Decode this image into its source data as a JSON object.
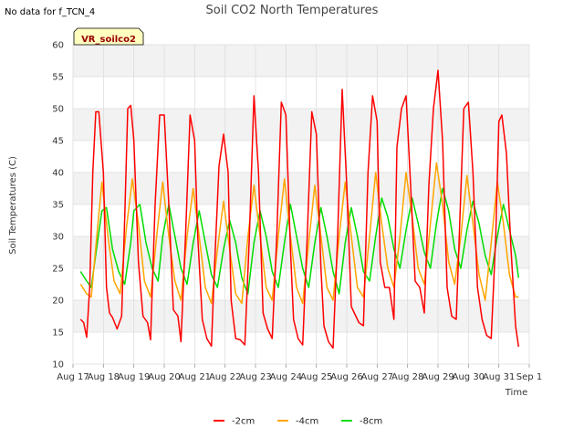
{
  "page": {
    "nodata_text": "No data for f_TCN_4"
  },
  "chart_data": {
    "type": "line",
    "title": "Soil CO2 North Temperatures",
    "xlabel": "Time",
    "ylabel": "Soil Temperatures (C)",
    "ylim": [
      10,
      60
    ],
    "yticks": [
      10,
      15,
      20,
      25,
      30,
      35,
      40,
      45,
      50,
      55,
      60
    ],
    "xlim": [
      17.0,
      32.0
    ],
    "xticks": [
      {
        "value": 17,
        "label": "Aug 17"
      },
      {
        "value": 18,
        "label": "Aug 18"
      },
      {
        "value": 19,
        "label": "Aug 19"
      },
      {
        "value": 20,
        "label": "Aug 20"
      },
      {
        "value": 21,
        "label": "Aug 21"
      },
      {
        "value": 22,
        "label": "Aug 22"
      },
      {
        "value": 23,
        "label": "Aug 23"
      },
      {
        "value": 24,
        "label": "Aug 24"
      },
      {
        "value": 25,
        "label": "Aug 25"
      },
      {
        "value": 26,
        "label": "Aug 26"
      },
      {
        "value": 27,
        "label": "Aug 27"
      },
      {
        "value": 28,
        "label": "Aug 28"
      },
      {
        "value": 29,
        "label": "Aug 29"
      },
      {
        "value": 30,
        "label": "Aug 30"
      },
      {
        "value": 31,
        "label": "Aug 31"
      },
      {
        "value": 32,
        "label": "Sep 1"
      }
    ],
    "grid": true,
    "background_bands": true,
    "badge": "VR_soilco2",
    "legend_position": "bottom-center",
    "series": [
      {
        "name": "-2cm",
        "color": "#ff0000",
        "x": [
          17.25,
          17.35,
          17.45,
          17.55,
          17.65,
          17.75,
          17.85,
          18.0,
          18.1,
          18.2,
          18.3,
          18.45,
          18.6,
          18.7,
          18.8,
          18.9,
          19.0,
          19.15,
          19.3,
          19.45,
          19.55,
          19.7,
          19.85,
          20.0,
          20.15,
          20.3,
          20.45,
          20.55,
          20.7,
          20.85,
          21.0,
          21.1,
          21.25,
          21.4,
          21.55,
          21.65,
          21.8,
          21.95,
          22.1,
          22.2,
          22.35,
          22.5,
          22.65,
          22.8,
          22.95,
          23.1,
          23.25,
          23.4,
          23.55,
          23.7,
          23.85,
          24.0,
          24.15,
          24.25,
          24.4,
          24.55,
          24.7,
          24.85,
          25.0,
          25.15,
          25.25,
          25.4,
          25.55,
          25.7,
          25.85,
          26.0,
          26.15,
          26.25,
          26.4,
          26.55,
          26.7,
          26.85,
          27.0,
          27.1,
          27.25,
          27.4,
          27.55,
          27.65,
          27.8,
          27.95,
          28.1,
          28.25,
          28.4,
          28.55,
          28.7,
          28.85,
          29.0,
          29.15,
          29.3,
          29.45,
          29.6,
          29.7,
          29.85,
          30.0,
          30.15,
          30.3,
          30.45,
          30.6,
          30.75,
          30.9,
          31.0,
          31.1,
          31.25,
          31.4,
          31.55,
          31.65
        ],
        "values": [
          17,
          16.5,
          14.2,
          22,
          40,
          49.5,
          49.5,
          40,
          22,
          18,
          17.3,
          15.5,
          17.5,
          33,
          50,
          50.5,
          45,
          26,
          17.5,
          16.5,
          13.8,
          35,
          49,
          49,
          35,
          18.5,
          17.5,
          13.5,
          30,
          49,
          45,
          30,
          17,
          14,
          12.8,
          25,
          41,
          46,
          40,
          20,
          14,
          13.8,
          13,
          30,
          52,
          40,
          18,
          15.5,
          14,
          30,
          51,
          49,
          28,
          17,
          14,
          13,
          30,
          49.5,
          46,
          25,
          16,
          13.5,
          12.5,
          30,
          53,
          38,
          19,
          18,
          16.5,
          16,
          40,
          52,
          48,
          26,
          22,
          22,
          17,
          44,
          50,
          52,
          38,
          23,
          22,
          18,
          38,
          50,
          56,
          45,
          22,
          17.5,
          17,
          30,
          50,
          51,
          40,
          22,
          17,
          14.5,
          14,
          30,
          48,
          49,
          43,
          28,
          16,
          12.7
        ]
      },
      {
        "name": "-4cm",
        "color": "#ffa500",
        "x": [
          17.25,
          17.45,
          17.6,
          17.8,
          17.95,
          18.15,
          18.35,
          18.55,
          18.75,
          18.95,
          19.15,
          19.35,
          19.55,
          19.75,
          19.95,
          20.15,
          20.35,
          20.55,
          20.75,
          20.95,
          21.15,
          21.35,
          21.55,
          21.75,
          21.95,
          22.15,
          22.35,
          22.55,
          22.75,
          22.95,
          23.15,
          23.35,
          23.55,
          23.75,
          23.95,
          24.15,
          24.35,
          24.55,
          24.75,
          24.95,
          25.15,
          25.35,
          25.55,
          25.75,
          25.95,
          26.15,
          26.35,
          26.55,
          26.75,
          26.95,
          27.15,
          27.35,
          27.55,
          27.75,
          27.95,
          28.15,
          28.35,
          28.55,
          28.75,
          28.95,
          29.15,
          29.35,
          29.55,
          29.75,
          29.95,
          30.15,
          30.35,
          30.55,
          30.75,
          30.95,
          31.15,
          31.35,
          31.55,
          31.65
        ],
        "values": [
          22.5,
          21,
          20.5,
          31,
          38.5,
          30,
          23,
          21,
          31,
          39,
          32,
          23,
          20.5,
          30,
          38.5,
          30,
          23,
          20,
          30,
          37.5,
          30,
          22,
          19.5,
          28,
          35.5,
          28,
          21,
          19.5,
          30,
          38,
          30,
          22,
          20,
          30,
          39,
          30,
          22,
          19.5,
          29,
          38,
          30,
          22,
          20,
          30,
          38.5,
          30,
          22,
          20.5,
          30,
          40,
          32,
          25,
          22,
          30,
          40,
          33,
          25,
          22.5,
          32,
          41.5,
          35,
          26,
          22.5,
          30,
          39.5,
          32,
          24,
          20,
          29,
          38.5,
          32,
          24,
          20.5,
          20.5
        ]
      },
      {
        "name": "-8cm",
        "color": "#00dd00",
        "x": [
          17.25,
          17.45,
          17.6,
          17.8,
          17.95,
          18.1,
          18.3,
          18.5,
          18.7,
          18.9,
          19.0,
          19.2,
          19.4,
          19.6,
          19.8,
          19.95,
          20.15,
          20.35,
          20.55,
          20.75,
          20.95,
          21.15,
          21.35,
          21.55,
          21.75,
          21.95,
          22.15,
          22.35,
          22.55,
          22.75,
          22.95,
          23.15,
          23.35,
          23.55,
          23.75,
          23.95,
          24.15,
          24.35,
          24.55,
          24.75,
          24.95,
          25.15,
          25.35,
          25.55,
          25.75,
          25.95,
          26.15,
          26.35,
          26.55,
          26.75,
          26.95,
          27.15,
          27.35,
          27.55,
          27.75,
          27.95,
          28.15,
          28.35,
          28.55,
          28.75,
          28.95,
          29.15,
          29.35,
          29.55,
          29.75,
          29.95,
          30.15,
          30.35,
          30.55,
          30.75,
          30.95,
          31.15,
          31.35,
          31.55,
          31.65
        ],
        "values": [
          24.5,
          23,
          22,
          29,
          34,
          34.5,
          28,
          24.5,
          22.5,
          29,
          34,
          35,
          29,
          25,
          23,
          30,
          35,
          30,
          25,
          22.5,
          29,
          34,
          29,
          24,
          22,
          28,
          32.5,
          29,
          23.5,
          21,
          29,
          34,
          30,
          24.5,
          22,
          29,
          35,
          30,
          25,
          22,
          29,
          34.5,
          30,
          24.5,
          21,
          29,
          34.5,
          30,
          24.5,
          23,
          30,
          36,
          33,
          28,
          25,
          31,
          36,
          32,
          27.5,
          25,
          32,
          37.5,
          34,
          28,
          25,
          31,
          35.5,
          32,
          27,
          24,
          30,
          35,
          31,
          27,
          23.5
        ]
      }
    ]
  }
}
